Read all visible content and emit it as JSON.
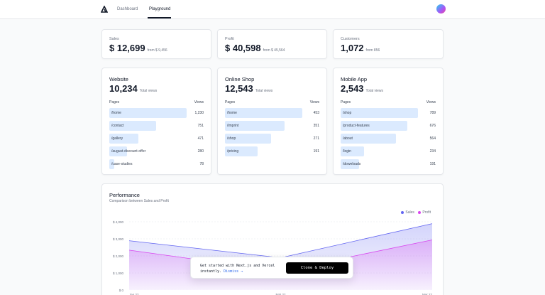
{
  "nav": {
    "links": [
      {
        "label": "Dashboard",
        "active": false
      },
      {
        "label": "Playground",
        "active": true
      }
    ]
  },
  "kpis": [
    {
      "label": "Sales",
      "value": "$ 12,699",
      "from": "from $ 9,456"
    },
    {
      "label": "Profit",
      "value": "$ 40,598",
      "from": "from $ 45,564"
    },
    {
      "label": "Customers",
      "value": "1,072",
      "from": "from 856"
    }
  ],
  "page_cards": [
    {
      "title": "Website",
      "value": "10,234",
      "value_label": "Total views",
      "col_pages": "Pages",
      "col_views": "Views",
      "rows": [
        {
          "page": "/home",
          "views": "1,230",
          "fraction": 1.0
        },
        {
          "page": "/contact",
          "views": "751",
          "fraction": 0.61
        },
        {
          "page": "/gallery",
          "views": "471",
          "fraction": 0.38
        },
        {
          "page": "/august-discount-offer",
          "views": "280",
          "fraction": 0.23
        },
        {
          "page": "/case-studies",
          "views": "78",
          "fraction": 0.06
        }
      ]
    },
    {
      "title": "Online Shop",
      "value": "12,543",
      "value_label": "Total views",
      "col_pages": "Pages",
      "col_views": "Views",
      "rows": [
        {
          "page": "/home",
          "views": "453",
          "fraction": 1.0
        },
        {
          "page": "/imprint",
          "views": "351",
          "fraction": 0.77
        },
        {
          "page": "/shop",
          "views": "271",
          "fraction": 0.6
        },
        {
          "page": "/pricing",
          "views": "191",
          "fraction": 0.42
        }
      ]
    },
    {
      "title": "Mobile App",
      "value": "2,543",
      "value_label": "Total views",
      "col_pages": "Pages",
      "col_views": "Views",
      "rows": [
        {
          "page": "/shop",
          "views": "789",
          "fraction": 1.0
        },
        {
          "page": "/product-features",
          "views": "676",
          "fraction": 0.86
        },
        {
          "page": "/about",
          "views": "564",
          "fraction": 0.72
        },
        {
          "page": "/login",
          "views": "234",
          "fraction": 0.3
        },
        {
          "page": "/downloads",
          "views": "191",
          "fraction": 0.24
        }
      ]
    }
  ],
  "performance": {
    "title": "Performance",
    "subtitle": "Comparison between Sales and Profit"
  },
  "chart_data": {
    "type": "area",
    "categories": [
      "Jan 22",
      "Feb 22",
      "Mar 22"
    ],
    "series": [
      {
        "name": "Sales",
        "values": [
          2890,
          1890,
          3890
        ],
        "color": "#6366f1"
      },
      {
        "name": "Profit",
        "values": [
          2338,
          1103,
          2938
        ],
        "color": "#d946ef"
      }
    ],
    "yticks": [
      "$ 0",
      "$ 1,000",
      "$ 2,000",
      "$ 3,000",
      "$ 4,000"
    ],
    "ylim": [
      0,
      4000
    ],
    "grid": true,
    "legend_position": "top-right"
  },
  "toast": {
    "line1": "Get started with Next.js and Vercel",
    "line2": "instantly.",
    "dismiss": "Dismiss →",
    "button": "Clone & Deploy"
  }
}
